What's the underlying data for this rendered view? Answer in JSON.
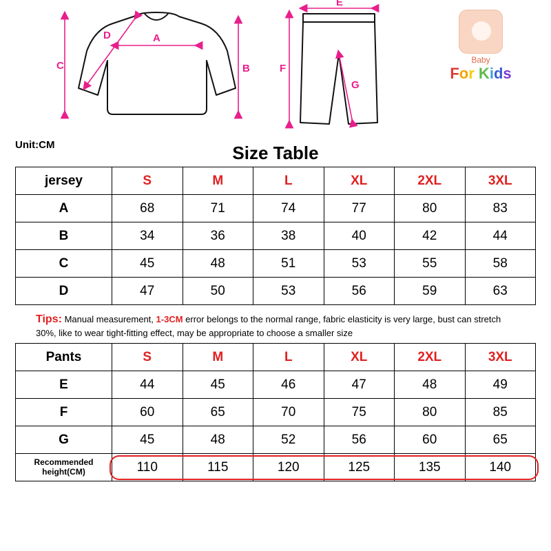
{
  "diagram": {
    "jersey_labels": [
      "A",
      "B",
      "C",
      "D"
    ],
    "pants_labels": [
      "E",
      "F",
      "G"
    ],
    "label_color": "#e91e8c",
    "garment_stroke": "#111111"
  },
  "badge": {
    "small_text": "Baby",
    "main_text": "For Kids"
  },
  "unit_label": "Unit:CM",
  "title": "Size Table",
  "sizes": [
    "S",
    "M",
    "L",
    "XL",
    "2XL",
    "3XL"
  ],
  "jersey": {
    "header": "jersey",
    "rows": [
      {
        "label": "A",
        "values": [
          68,
          71,
          74,
          77,
          80,
          83
        ]
      },
      {
        "label": "B",
        "values": [
          34,
          36,
          38,
          40,
          42,
          44
        ]
      },
      {
        "label": "C",
        "values": [
          45,
          48,
          51,
          53,
          55,
          58
        ]
      },
      {
        "label": "D",
        "values": [
          47,
          50,
          53,
          56,
          59,
          63
        ]
      }
    ]
  },
  "tips": {
    "lead": "Tips:",
    "text_before": "Manual measurement, ",
    "error_text": "1-3CM",
    "text_after": " error belongs to the normal range, fabric elasticity is very large, bust can stretch 30%, like to wear tight-fitting effect, may be appropriate to choose a smaller size"
  },
  "pants": {
    "header": "Pants",
    "rows": [
      {
        "label": "E",
        "values": [
          44,
          45,
          46,
          47,
          48,
          49
        ]
      },
      {
        "label": "F",
        "values": [
          60,
          65,
          70,
          75,
          80,
          85
        ]
      },
      {
        "label": "G",
        "values": [
          45,
          48,
          52,
          56,
          60,
          65
        ]
      }
    ],
    "rec_label": "Recommended height(CM)",
    "rec_values": [
      110,
      115,
      120,
      125,
      135,
      140
    ]
  },
  "colors": {
    "size_header": "#e02020",
    "tip_accent": "#e02020",
    "rec_box": "#e02020"
  }
}
